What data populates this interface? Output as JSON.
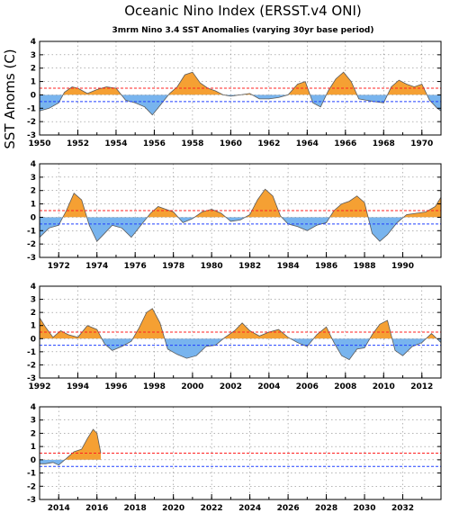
{
  "chart_data": {
    "type": "area",
    "title": "Oceanic Nino Index (ERSST.v4 ONI)",
    "subtitle": "3mrm Nino 3.4 SST Anomalies (varying 30yr base period)",
    "ylabel": "SST Anoms (C)",
    "ylim": [
      -3,
      4
    ],
    "yticks": [
      4,
      3,
      2,
      1,
      0,
      -1,
      -2,
      -3
    ],
    "thresholds": {
      "el_nino": 0.5,
      "la_nina": -0.5
    },
    "colors": {
      "warm": "#f5a033",
      "cold": "#78b4ee",
      "upper_line": "#ff2020",
      "lower_line": "#2040ff",
      "grid": "#888888"
    },
    "grid": true,
    "panels": [
      {
        "xlim": [
          1950,
          1971
        ],
        "xticks": [
          "1950",
          "1952",
          "1954",
          "1956",
          "1958",
          "1960",
          "1962",
          "1964",
          "1966",
          "1968",
          "1970"
        ],
        "x": [
          1950.0,
          1950.5,
          1951.0,
          1951.3,
          1951.7,
          1952.0,
          1952.5,
          1953.0,
          1953.5,
          1954.0,
          1954.5,
          1955.0,
          1955.5,
          1955.9,
          1956.3,
          1956.8,
          1957.2,
          1957.6,
          1958.0,
          1958.4,
          1958.8,
          1959.2,
          1959.6,
          1960.0,
          1960.5,
          1961.0,
          1961.5,
          1962.0,
          1962.5,
          1963.0,
          1963.5,
          1963.9,
          1964.3,
          1964.7,
          1965.1,
          1965.5,
          1965.9,
          1966.3,
          1966.7,
          1967.1,
          1967.5,
          1968.0,
          1968.4,
          1968.8,
          1969.2,
          1969.6,
          1970.0,
          1970.4,
          1970.8,
          1971.0
        ],
        "y": [
          -1.2,
          -1.0,
          -0.6,
          0.2,
          0.6,
          0.5,
          0.1,
          0.4,
          0.6,
          0.5,
          -0.4,
          -0.6,
          -0.9,
          -1.5,
          -0.8,
          0.1,
          0.6,
          1.5,
          1.7,
          0.9,
          0.5,
          0.3,
          0.0,
          -0.1,
          0.0,
          0.1,
          -0.3,
          -0.3,
          -0.2,
          0.0,
          0.8,
          1.0,
          -0.6,
          -0.9,
          0.3,
          1.2,
          1.7,
          1.0,
          -0.3,
          -0.4,
          -0.5,
          -0.6,
          0.6,
          1.1,
          0.8,
          0.6,
          0.8,
          -0.4,
          -1.0,
          -1.2
        ]
      },
      {
        "xlim": [
          1971,
          1992
        ],
        "xticks": [
          "1972",
          "1974",
          "1976",
          "1978",
          "1980",
          "1982",
          "1984",
          "1986",
          "1988",
          "1990"
        ],
        "x": [
          1971.0,
          1971.5,
          1972.0,
          1972.4,
          1972.8,
          1973.2,
          1973.6,
          1974.0,
          1974.4,
          1974.8,
          1975.3,
          1975.8,
          1976.3,
          1976.8,
          1977.2,
          1977.6,
          1978.0,
          1978.5,
          1979.0,
          1979.5,
          1980.0,
          1980.5,
          1981.0,
          1981.5,
          1982.0,
          1982.4,
          1982.8,
          1983.2,
          1983.6,
          1984.0,
          1984.5,
          1985.0,
          1985.5,
          1986.0,
          1986.4,
          1986.8,
          1987.2,
          1987.6,
          1988.0,
          1988.4,
          1988.8,
          1989.2,
          1989.7,
          1990.2,
          1990.7,
          1991.2,
          1991.7,
          1992.0
        ],
        "y": [
          -1.5,
          -0.8,
          -0.6,
          0.5,
          1.8,
          1.3,
          -0.6,
          -1.8,
          -1.2,
          -0.6,
          -0.8,
          -1.5,
          -0.6,
          0.3,
          0.8,
          0.6,
          0.4,
          -0.4,
          -0.1,
          0.4,
          0.6,
          0.3,
          -0.3,
          -0.2,
          0.2,
          1.3,
          2.1,
          1.6,
          0.1,
          -0.5,
          -0.7,
          -1.0,
          -0.6,
          -0.4,
          0.5,
          1.0,
          1.2,
          1.6,
          1.1,
          -1.2,
          -1.8,
          -1.3,
          -0.4,
          0.2,
          0.3,
          0.4,
          0.8,
          1.5
        ]
      },
      {
        "xlim": [
          1992,
          2013
        ],
        "xticks": [
          "1992",
          "1994",
          "1996",
          "1998",
          "2000",
          "2002",
          "2004",
          "2006",
          "2008",
          "2010",
          "2012"
        ],
        "x": [
          1992.0,
          1992.3,
          1992.7,
          1993.1,
          1993.5,
          1994.0,
          1994.5,
          1995.0,
          1995.4,
          1995.8,
          1996.3,
          1996.8,
          1997.2,
          1997.6,
          1997.9,
          1998.3,
          1998.7,
          1999.2,
          1999.7,
          2000.2,
          2000.7,
          2001.2,
          2001.7,
          2002.2,
          2002.6,
          2003.0,
          2003.5,
          2004.0,
          2004.5,
          2005.0,
          2005.5,
          2006.0,
          2006.5,
          2007.0,
          2007.4,
          2007.8,
          2008.2,
          2008.6,
          2009.0,
          2009.4,
          2009.8,
          2010.2,
          2010.6,
          2011.0,
          2011.5,
          2012.0,
          2012.5,
          2013.0
        ],
        "y": [
          1.6,
          0.9,
          0.1,
          0.6,
          0.3,
          0.1,
          1.0,
          0.7,
          -0.4,
          -0.9,
          -0.6,
          -0.2,
          0.8,
          2.0,
          2.3,
          1.2,
          -0.8,
          -1.2,
          -1.5,
          -1.3,
          -0.6,
          -0.5,
          0.1,
          0.6,
          1.2,
          0.6,
          0.2,
          0.5,
          0.7,
          0.1,
          -0.3,
          -0.6,
          0.3,
          0.9,
          -0.3,
          -1.3,
          -1.6,
          -0.8,
          -0.7,
          0.3,
          1.1,
          1.4,
          -0.9,
          -1.3,
          -0.6,
          -0.3,
          0.4,
          -0.3
        ]
      },
      {
        "xlim": [
          2013,
          2034
        ],
        "xticks": [
          "2014",
          "2016",
          "2018",
          "2020",
          "2022",
          "2024",
          "2026",
          "2028",
          "2030",
          "2032"
        ],
        "x": [
          2013.0,
          2013.3,
          2013.7,
          2014.0,
          2014.4,
          2014.8,
          2015.2,
          2015.5,
          2015.8,
          2016.0,
          2016.2
        ],
        "y": [
          -0.3,
          -0.3,
          -0.2,
          -0.4,
          0.1,
          0.6,
          0.8,
          1.6,
          2.3,
          2.0,
          0.5
        ]
      }
    ]
  }
}
